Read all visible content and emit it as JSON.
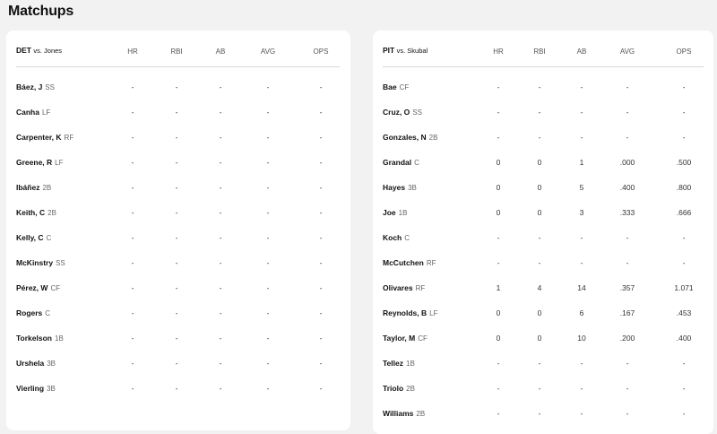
{
  "page": {
    "title": "Matchups"
  },
  "left": {
    "header": {
      "team": "DET",
      "vs_label": "vs. Jones"
    },
    "columns": [
      "HR",
      "RBI",
      "AB",
      "AVG",
      "OPS"
    ],
    "rows": [
      {
        "name": "Báez, J",
        "pos": "SS",
        "HR": "-",
        "RBI": "-",
        "AB": "-",
        "AVG": "-",
        "OPS": "-"
      },
      {
        "name": "Canha",
        "pos": "LF",
        "HR": "-",
        "RBI": "-",
        "AB": "-",
        "AVG": "-",
        "OPS": "-"
      },
      {
        "name": "Carpenter, K",
        "pos": "RF",
        "HR": "-",
        "RBI": "-",
        "AB": "-",
        "AVG": "-",
        "OPS": "-"
      },
      {
        "name": "Greene, R",
        "pos": "LF",
        "HR": "-",
        "RBI": "-",
        "AB": "-",
        "AVG": "-",
        "OPS": "-"
      },
      {
        "name": "Ibáñez",
        "pos": "2B",
        "HR": "-",
        "RBI": "-",
        "AB": "-",
        "AVG": "-",
        "OPS": "-"
      },
      {
        "name": "Keith, C",
        "pos": "2B",
        "HR": "-",
        "RBI": "-",
        "AB": "-",
        "AVG": "-",
        "OPS": "-"
      },
      {
        "name": "Kelly, C",
        "pos": "C",
        "HR": "-",
        "RBI": "-",
        "AB": "-",
        "AVG": "-",
        "OPS": "-"
      },
      {
        "name": "McKinstry",
        "pos": "SS",
        "HR": "-",
        "RBI": "-",
        "AB": "-",
        "AVG": "-",
        "OPS": "-"
      },
      {
        "name": "Pérez, W",
        "pos": "CF",
        "HR": "-",
        "RBI": "-",
        "AB": "-",
        "AVG": "-",
        "OPS": "-"
      },
      {
        "name": "Rogers",
        "pos": "C",
        "HR": "-",
        "RBI": "-",
        "AB": "-",
        "AVG": "-",
        "OPS": "-"
      },
      {
        "name": "Torkelson",
        "pos": "1B",
        "HR": "-",
        "RBI": "-",
        "AB": "-",
        "AVG": "-",
        "OPS": "-"
      },
      {
        "name": "Urshela",
        "pos": "3B",
        "HR": "-",
        "RBI": "-",
        "AB": "-",
        "AVG": "-",
        "OPS": "-"
      },
      {
        "name": "Vierling",
        "pos": "3B",
        "HR": "-",
        "RBI": "-",
        "AB": "-",
        "AVG": "-",
        "OPS": "-"
      }
    ]
  },
  "right": {
    "header": {
      "team": "PIT",
      "vs_label": "vs. Skubal"
    },
    "columns": [
      "HR",
      "RBI",
      "AB",
      "AVG",
      "OPS"
    ],
    "rows": [
      {
        "name": "Bae",
        "pos": "CF",
        "HR": "-",
        "RBI": "-",
        "AB": "-",
        "AVG": "-",
        "OPS": "-"
      },
      {
        "name": "Cruz, O",
        "pos": "SS",
        "HR": "-",
        "RBI": "-",
        "AB": "-",
        "AVG": "-",
        "OPS": "-"
      },
      {
        "name": "Gonzales, N",
        "pos": "2B",
        "HR": "-",
        "RBI": "-",
        "AB": "-",
        "AVG": "-",
        "OPS": "-"
      },
      {
        "name": "Grandal",
        "pos": "C",
        "HR": "0",
        "RBI": "0",
        "AB": "1",
        "AVG": ".000",
        "OPS": ".500"
      },
      {
        "name": "Hayes",
        "pos": "3B",
        "HR": "0",
        "RBI": "0",
        "AB": "5",
        "AVG": ".400",
        "OPS": ".800"
      },
      {
        "name": "Joe",
        "pos": "1B",
        "HR": "0",
        "RBI": "0",
        "AB": "3",
        "AVG": ".333",
        "OPS": ".666"
      },
      {
        "name": "Koch",
        "pos": "C",
        "HR": "-",
        "RBI": "-",
        "AB": "-",
        "AVG": "-",
        "OPS": "-"
      },
      {
        "name": "McCutchen",
        "pos": "RF",
        "HR": "-",
        "RBI": "-",
        "AB": "-",
        "AVG": "-",
        "OPS": "-"
      },
      {
        "name": "Olivares",
        "pos": "RF",
        "HR": "1",
        "RBI": "4",
        "AB": "14",
        "AVG": ".357",
        "OPS": "1.071"
      },
      {
        "name": "Reynolds, B",
        "pos": "LF",
        "HR": "0",
        "RBI": "0",
        "AB": "6",
        "AVG": ".167",
        "OPS": ".453"
      },
      {
        "name": "Taylor, M",
        "pos": "CF",
        "HR": "0",
        "RBI": "0",
        "AB": "10",
        "AVG": ".200",
        "OPS": ".400"
      },
      {
        "name": "Tellez",
        "pos": "1B",
        "HR": "-",
        "RBI": "-",
        "AB": "-",
        "AVG": "-",
        "OPS": "-"
      },
      {
        "name": "Triolo",
        "pos": "2B",
        "HR": "-",
        "RBI": "-",
        "AB": "-",
        "AVG": "-",
        "OPS": "-"
      },
      {
        "name": "Williams",
        "pos": "2B",
        "HR": "-",
        "RBI": "-",
        "AB": "-",
        "AVG": "-",
        "OPS": "-"
      }
    ]
  }
}
